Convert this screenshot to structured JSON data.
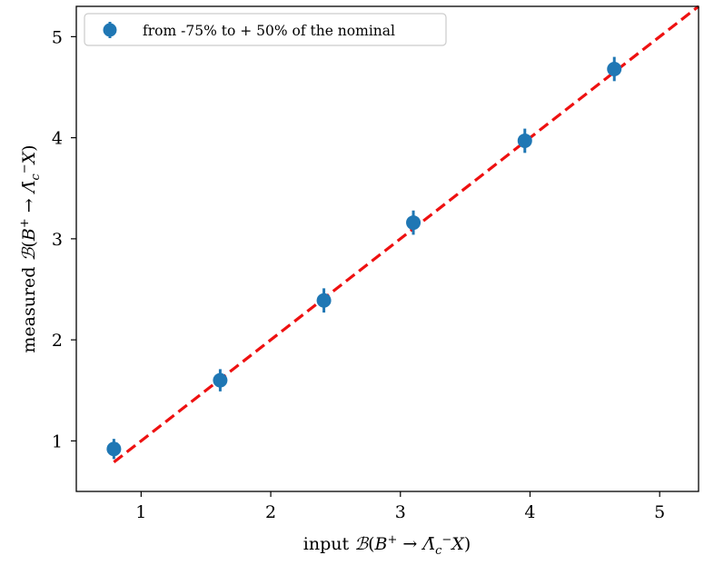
{
  "chart_data": {
    "type": "scatter",
    "xlabel": "input 𝓑(B⁺ → Λ̄c⁻X)",
    "ylabel": "measured 𝓑(B⁺ → Λ̄c⁻X)",
    "xlim": [
      0.5,
      5.3
    ],
    "ylim": [
      0.5,
      5.3
    ],
    "xticks": [
      1,
      2,
      3,
      4,
      5
    ],
    "yticks": [
      1,
      2,
      3,
      4,
      5
    ],
    "grid": false,
    "legend_position": "top-left",
    "series": [
      {
        "name": "from -75% to + 50% of the nominal",
        "color": "#1f77b4",
        "marker": "circle",
        "x": [
          0.79,
          1.61,
          2.41,
          3.1,
          3.96,
          4.65
        ],
        "y": [
          0.92,
          1.6,
          2.39,
          3.16,
          3.97,
          4.68
        ],
        "yerr": [
          0.1,
          0.11,
          0.12,
          0.12,
          0.12,
          0.12
        ]
      }
    ],
    "reference_line": {
      "style": "dashed",
      "color": "#ee1111",
      "x": [
        0.79,
        5.3
      ],
      "y": [
        0.79,
        5.3
      ]
    }
  }
}
